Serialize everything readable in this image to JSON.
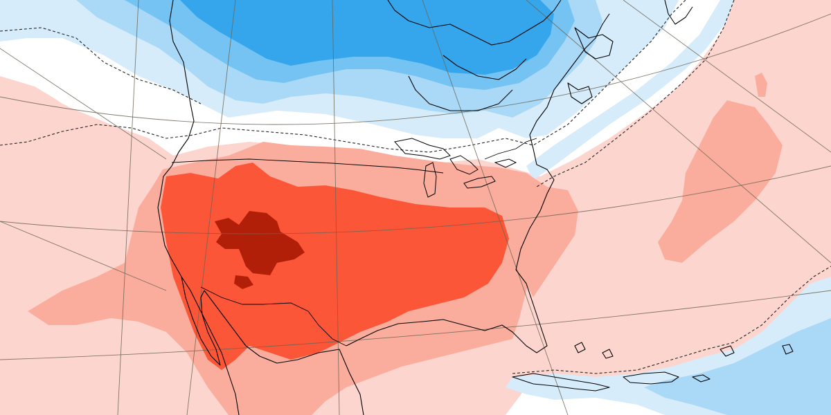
{
  "map": {
    "kind": "temperature anomaly map",
    "region": "North America",
    "colors": {
      "cold_1": "#d7ecfb",
      "cold_2": "#a9d9f7",
      "cold_3": "#74c3f3",
      "cold_4": "#35a6ec",
      "neutral": "#ffffff",
      "warm_1": "#fdd5cf",
      "warm_2": "#fbad9d",
      "warm_3": "#fb5637",
      "warm_4": "#b21f08",
      "contour_line": "#222222",
      "coastline": "#000000",
      "graticule": "#6b6454"
    },
    "contour_style": "dashed"
  }
}
